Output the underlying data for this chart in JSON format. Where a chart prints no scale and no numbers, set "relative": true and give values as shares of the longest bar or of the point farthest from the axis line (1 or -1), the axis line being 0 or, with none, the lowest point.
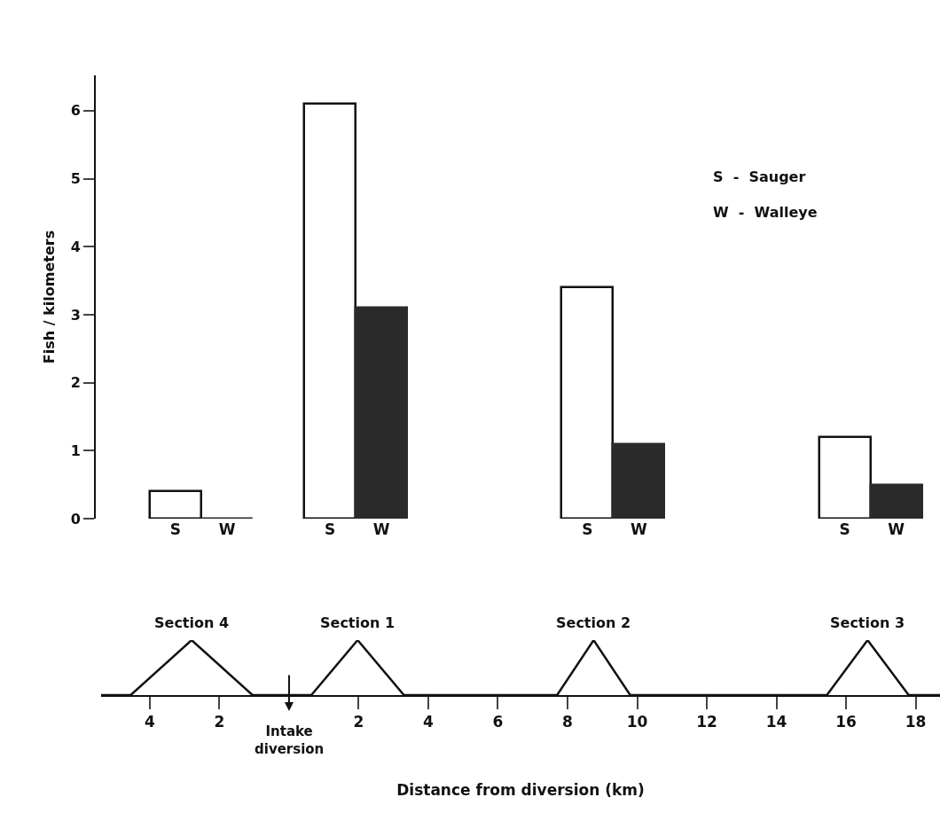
{
  "chart_data": [
    {
      "type": "bar",
      "ylabel": "Fish / kilometers",
      "categories": [
        "S",
        "W",
        null,
        "S",
        "W",
        null,
        null,
        null,
        "S",
        "W",
        null,
        null,
        null,
        "S",
        "W"
      ],
      "values": [
        0.4,
        0,
        null,
        6.1,
        3.1,
        null,
        null,
        null,
        3.4,
        1.1,
        null,
        null,
        null,
        1.2,
        0.5
      ],
      "colors": [
        "#ffffff",
        "#2a2a2a",
        null,
        "#ffffff",
        "#2a2a2a",
        null,
        null,
        null,
        "#ffffff",
        "#2a2a2a",
        null,
        null,
        null,
        "#ffffff",
        "#2a2a2a"
      ],
      "ylim": [
        0,
        6.52
      ],
      "yticks": [
        0,
        1,
        2,
        3,
        4,
        5,
        6
      ],
      "annotations": [
        "S  -  Sauger",
        "W  -  Walleye"
      ]
    },
    {
      "type": "line",
      "relative": true,
      "xlabel": "Distance from diversion (km)",
      "xlim": [
        -5.4,
        18.7
      ],
      "xticks": [
        {
          "value": -4,
          "label": "4"
        },
        {
          "value": -2,
          "label": "2"
        },
        2,
        4,
        6,
        8,
        10,
        12,
        14,
        16,
        18
      ],
      "series": [
        {
          "color": "#111111",
          "x": [
            -5.4,
            -4.55,
            -2.8,
            -1.05,
            0.64,
            1.97,
            3.3,
            7.7,
            8.75,
            9.8,
            15.45,
            16.62,
            17.8,
            18.7
          ],
          "values": [
            0,
            0,
            1,
            0,
            0,
            1,
            0,
            0,
            1,
            0,
            0,
            1,
            0,
            0
          ]
        }
      ],
      "marker": "none",
      "line_style": "solid",
      "annotations": [
        {
          "text": "Section 4",
          "x": -2.8,
          "y": 1
        },
        {
          "text": "Section 1",
          "x": 1.97,
          "y": 1
        },
        {
          "text": "Section 2",
          "x": 8.75,
          "y": 1
        },
        {
          "text": "Section 3",
          "x": 16.62,
          "y": 1
        },
        {
          "text": "Intake\ndiversion",
          "x": 0,
          "y": 0
        }
      ]
    }
  ]
}
